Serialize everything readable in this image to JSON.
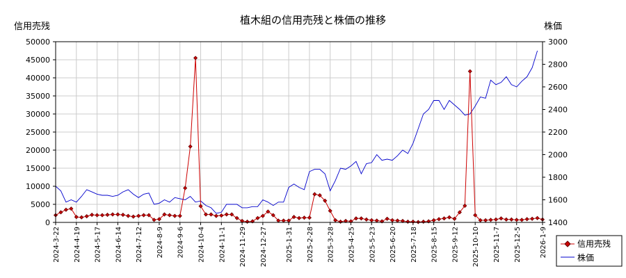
{
  "chart_data": {
    "type": "line",
    "title": "植木組の信用売残と株価の推移",
    "ylabel_left": "信用売残",
    "ylabel_right": "株価",
    "ylim_left": [
      0,
      50000
    ],
    "ylim_right": [
      1400,
      3000
    ],
    "yticks_left": [
      "0",
      "5000",
      "10000",
      "15000",
      "20000",
      "25000",
      "30000",
      "35000",
      "40000",
      "45000",
      "50000"
    ],
    "yticks_right": [
      "1400",
      "1600",
      "1800",
      "2000",
      "2200",
      "2400",
      "2600",
      "2800",
      "3000"
    ],
    "xlim": [
      "2024-03-22",
      "2026-01-09"
    ],
    "xticks": [
      "2024-3-22",
      "2024-4-19",
      "2024-5-17",
      "2024-6-14",
      "2024-7-12",
      "2024-8-9",
      "2024-9-6",
      "2024-10-4",
      "2024-11-1",
      "2024-11-29",
      "2024-12-27",
      "2025-1-31",
      "2025-2-28",
      "2025-3-28",
      "2025-4-25",
      "2025-5-23",
      "2025-6-20",
      "2025-7-18",
      "2025-8-15",
      "2025-9-12",
      "2025-10-10",
      "2025-11-7",
      "2025-12-5",
      "2026-1-9"
    ],
    "grid": true,
    "legend_position": "bottom-right",
    "series": [
      {
        "name": "信用売残",
        "axis": "left",
        "color": "#cc0000",
        "marker_color": "#660000",
        "marker": "diamond",
        "points": [
          [
            "2024-03-22",
            2000
          ],
          [
            "2024-03-29",
            2800
          ],
          [
            "2024-04-05",
            3500
          ],
          [
            "2024-04-12",
            3800
          ],
          [
            "2024-04-19",
            1500
          ],
          [
            "2024-04-26",
            1400
          ],
          [
            "2024-05-03",
            1700
          ],
          [
            "2024-05-10",
            2100
          ],
          [
            "2024-05-17",
            2000
          ],
          [
            "2024-05-24",
            2000
          ],
          [
            "2024-05-31",
            2100
          ],
          [
            "2024-06-07",
            2200
          ],
          [
            "2024-06-14",
            2200
          ],
          [
            "2024-06-21",
            2100
          ],
          [
            "2024-06-28",
            1800
          ],
          [
            "2024-07-05",
            1600
          ],
          [
            "2024-07-12",
            1800
          ],
          [
            "2024-07-19",
            2000
          ],
          [
            "2024-07-26",
            2000
          ],
          [
            "2024-08-02",
            700
          ],
          [
            "2024-08-09",
            900
          ],
          [
            "2024-08-16",
            2200
          ],
          [
            "2024-08-23",
            2000
          ],
          [
            "2024-08-30",
            1800
          ],
          [
            "2024-09-06",
            1800
          ],
          [
            "2024-09-13",
            9500
          ],
          [
            "2024-09-20",
            21000
          ],
          [
            "2024-09-27",
            45500
          ],
          [
            "2024-10-04",
            4500
          ],
          [
            "2024-10-11",
            2200
          ],
          [
            "2024-10-18",
            2200
          ],
          [
            "2024-10-25",
            1800
          ],
          [
            "2024-11-01",
            1900
          ],
          [
            "2024-11-08",
            2200
          ],
          [
            "2024-11-15",
            2200
          ],
          [
            "2024-11-22",
            1200
          ],
          [
            "2024-11-29",
            400
          ],
          [
            "2024-12-06",
            200
          ],
          [
            "2024-12-13",
            300
          ],
          [
            "2024-12-20",
            1200
          ],
          [
            "2024-12-27",
            1800
          ],
          [
            "2025-01-03",
            3000
          ],
          [
            "2025-01-10",
            2000
          ],
          [
            "2025-01-17",
            500
          ],
          [
            "2025-01-24",
            500
          ],
          [
            "2025-01-31",
            500
          ],
          [
            "2025-02-07",
            1500
          ],
          [
            "2025-02-14",
            1200
          ],
          [
            "2025-02-21",
            1300
          ],
          [
            "2025-02-28",
            1300
          ],
          [
            "2025-03-07",
            7800
          ],
          [
            "2025-03-14",
            7500
          ],
          [
            "2025-03-21",
            6000
          ],
          [
            "2025-03-28",
            3200
          ],
          [
            "2025-04-04",
            600
          ],
          [
            "2025-04-11",
            200
          ],
          [
            "2025-04-18",
            400
          ],
          [
            "2025-04-25",
            300
          ],
          [
            "2025-05-02",
            1100
          ],
          [
            "2025-05-09",
            1100
          ],
          [
            "2025-05-16",
            800
          ],
          [
            "2025-05-23",
            600
          ],
          [
            "2025-05-30",
            500
          ],
          [
            "2025-06-06",
            300
          ],
          [
            "2025-06-13",
            1000
          ],
          [
            "2025-06-20",
            600
          ],
          [
            "2025-06-27",
            500
          ],
          [
            "2025-07-04",
            400
          ],
          [
            "2025-07-11",
            200
          ],
          [
            "2025-07-18",
            200
          ],
          [
            "2025-07-25",
            100
          ],
          [
            "2025-08-01",
            200
          ],
          [
            "2025-08-08",
            300
          ],
          [
            "2025-08-15",
            600
          ],
          [
            "2025-08-22",
            900
          ],
          [
            "2025-08-29",
            1100
          ],
          [
            "2025-09-05",
            1400
          ],
          [
            "2025-09-12",
            1000
          ],
          [
            "2025-09-19",
            2800
          ],
          [
            "2025-09-26",
            4600
          ],
          [
            "2025-10-03",
            41800
          ],
          [
            "2025-10-10",
            2000
          ],
          [
            "2025-10-17",
            600
          ],
          [
            "2025-10-24",
            600
          ],
          [
            "2025-10-31",
            700
          ],
          [
            "2025-11-07",
            800
          ],
          [
            "2025-11-14",
            1100
          ],
          [
            "2025-11-21",
            800
          ],
          [
            "2025-11-28",
            800
          ],
          [
            "2025-12-05",
            700
          ],
          [
            "2025-12-12",
            700
          ],
          [
            "2025-12-19",
            900
          ],
          [
            "2025-12-26",
            1000
          ],
          [
            "2026-01-02",
            1200
          ],
          [
            "2026-01-09",
            800
          ]
        ]
      },
      {
        "name": "株価",
        "axis": "right",
        "color": "#0000cc",
        "points": [
          [
            "2024-03-22",
            1720
          ],
          [
            "2024-03-29",
            1680
          ],
          [
            "2024-04-05",
            1580
          ],
          [
            "2024-04-12",
            1600
          ],
          [
            "2024-04-19",
            1580
          ],
          [
            "2024-04-26",
            1630
          ],
          [
            "2024-05-03",
            1690
          ],
          [
            "2024-05-10",
            1670
          ],
          [
            "2024-05-17",
            1650
          ],
          [
            "2024-05-24",
            1640
          ],
          [
            "2024-05-31",
            1640
          ],
          [
            "2024-06-07",
            1630
          ],
          [
            "2024-06-14",
            1640
          ],
          [
            "2024-06-21",
            1670
          ],
          [
            "2024-06-28",
            1690
          ],
          [
            "2024-07-05",
            1650
          ],
          [
            "2024-07-12",
            1620
          ],
          [
            "2024-07-19",
            1650
          ],
          [
            "2024-07-26",
            1660
          ],
          [
            "2024-08-02",
            1560
          ],
          [
            "2024-08-09",
            1570
          ],
          [
            "2024-08-16",
            1600
          ],
          [
            "2024-08-23",
            1580
          ],
          [
            "2024-08-30",
            1620
          ],
          [
            "2024-09-06",
            1610
          ],
          [
            "2024-09-13",
            1600
          ],
          [
            "2024-09-20",
            1630
          ],
          [
            "2024-09-27",
            1580
          ],
          [
            "2024-10-04",
            1590
          ],
          [
            "2024-10-11",
            1550
          ],
          [
            "2024-10-18",
            1530
          ],
          [
            "2024-10-25",
            1480
          ],
          [
            "2024-11-01",
            1490
          ],
          [
            "2024-11-08",
            1560
          ],
          [
            "2024-11-15",
            1560
          ],
          [
            "2024-11-22",
            1560
          ],
          [
            "2024-11-29",
            1530
          ],
          [
            "2024-12-06",
            1530
          ],
          [
            "2024-12-13",
            1540
          ],
          [
            "2024-12-20",
            1540
          ],
          [
            "2024-12-27",
            1600
          ],
          [
            "2025-01-03",
            1580
          ],
          [
            "2025-01-10",
            1550
          ],
          [
            "2025-01-17",
            1580
          ],
          [
            "2025-01-24",
            1580
          ],
          [
            "2025-01-31",
            1710
          ],
          [
            "2025-02-07",
            1740
          ],
          [
            "2025-02-14",
            1710
          ],
          [
            "2025-02-21",
            1690
          ],
          [
            "2025-02-28",
            1850
          ],
          [
            "2025-03-07",
            1870
          ],
          [
            "2025-03-14",
            1870
          ],
          [
            "2025-03-21",
            1830
          ],
          [
            "2025-03-28",
            1680
          ],
          [
            "2025-04-04",
            1770
          ],
          [
            "2025-04-11",
            1880
          ],
          [
            "2025-04-18",
            1870
          ],
          [
            "2025-04-25",
            1900
          ],
          [
            "2025-05-02",
            1940
          ],
          [
            "2025-05-09",
            1830
          ],
          [
            "2025-05-16",
            1920
          ],
          [
            "2025-05-23",
            1930
          ],
          [
            "2025-05-30",
            2000
          ],
          [
            "2025-06-06",
            1950
          ],
          [
            "2025-06-13",
            1960
          ],
          [
            "2025-06-20",
            1950
          ],
          [
            "2025-06-27",
            1990
          ],
          [
            "2025-07-04",
            2040
          ],
          [
            "2025-07-11",
            2010
          ],
          [
            "2025-07-18",
            2100
          ],
          [
            "2025-07-25",
            2230
          ],
          [
            "2025-08-01",
            2360
          ],
          [
            "2025-08-08",
            2400
          ],
          [
            "2025-08-15",
            2480
          ],
          [
            "2025-08-22",
            2480
          ],
          [
            "2025-08-29",
            2400
          ],
          [
            "2025-09-05",
            2480
          ],
          [
            "2025-09-12",
            2440
          ],
          [
            "2025-09-19",
            2400
          ],
          [
            "2025-09-26",
            2350
          ],
          [
            "2025-10-03",
            2360
          ],
          [
            "2025-10-10",
            2430
          ],
          [
            "2025-10-17",
            2510
          ],
          [
            "2025-10-24",
            2500
          ],
          [
            "2025-10-31",
            2660
          ],
          [
            "2025-11-07",
            2620
          ],
          [
            "2025-11-14",
            2640
          ],
          [
            "2025-11-21",
            2690
          ],
          [
            "2025-11-28",
            2620
          ],
          [
            "2025-12-05",
            2600
          ],
          [
            "2025-12-12",
            2650
          ],
          [
            "2025-12-19",
            2690
          ],
          [
            "2025-12-26",
            2770
          ],
          [
            "2026-01-02",
            2920
          ]
        ]
      }
    ]
  }
}
